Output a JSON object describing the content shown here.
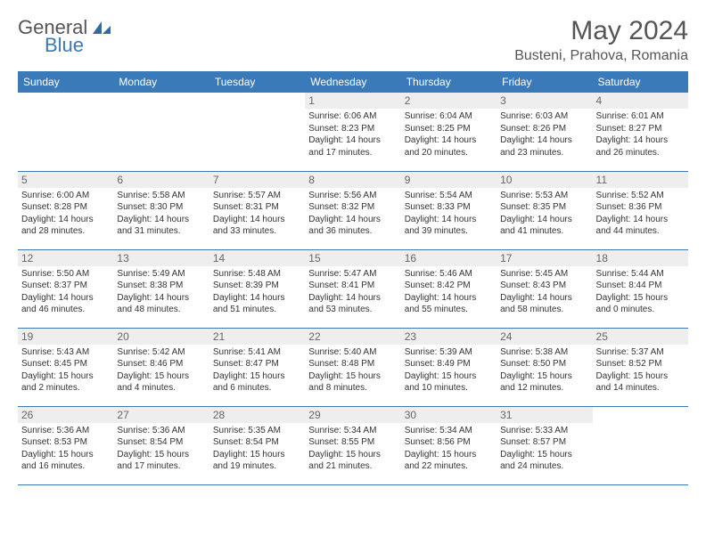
{
  "brand": {
    "general": "General",
    "blue": "Blue"
  },
  "title": "May 2024",
  "location": "Busteni, Prahova, Romania",
  "colors": {
    "accent": "#3a7ab8",
    "dayband": "#eeeeee",
    "text": "#555555"
  },
  "weekdays": [
    "Sunday",
    "Monday",
    "Tuesday",
    "Wednesday",
    "Thursday",
    "Friday",
    "Saturday"
  ],
  "weeks": [
    [
      null,
      null,
      null,
      {
        "n": "1",
        "sr": "6:06 AM",
        "ss": "8:23 PM",
        "dl": "14 hours and 17 minutes."
      },
      {
        "n": "2",
        "sr": "6:04 AM",
        "ss": "8:25 PM",
        "dl": "14 hours and 20 minutes."
      },
      {
        "n": "3",
        "sr": "6:03 AM",
        "ss": "8:26 PM",
        "dl": "14 hours and 23 minutes."
      },
      {
        "n": "4",
        "sr": "6:01 AM",
        "ss": "8:27 PM",
        "dl": "14 hours and 26 minutes."
      }
    ],
    [
      {
        "n": "5",
        "sr": "6:00 AM",
        "ss": "8:28 PM",
        "dl": "14 hours and 28 minutes."
      },
      {
        "n": "6",
        "sr": "5:58 AM",
        "ss": "8:30 PM",
        "dl": "14 hours and 31 minutes."
      },
      {
        "n": "7",
        "sr": "5:57 AM",
        "ss": "8:31 PM",
        "dl": "14 hours and 33 minutes."
      },
      {
        "n": "8",
        "sr": "5:56 AM",
        "ss": "8:32 PM",
        "dl": "14 hours and 36 minutes."
      },
      {
        "n": "9",
        "sr": "5:54 AM",
        "ss": "8:33 PM",
        "dl": "14 hours and 39 minutes."
      },
      {
        "n": "10",
        "sr": "5:53 AM",
        "ss": "8:35 PM",
        "dl": "14 hours and 41 minutes."
      },
      {
        "n": "11",
        "sr": "5:52 AM",
        "ss": "8:36 PM",
        "dl": "14 hours and 44 minutes."
      }
    ],
    [
      {
        "n": "12",
        "sr": "5:50 AM",
        "ss": "8:37 PM",
        "dl": "14 hours and 46 minutes."
      },
      {
        "n": "13",
        "sr": "5:49 AM",
        "ss": "8:38 PM",
        "dl": "14 hours and 48 minutes."
      },
      {
        "n": "14",
        "sr": "5:48 AM",
        "ss": "8:39 PM",
        "dl": "14 hours and 51 minutes."
      },
      {
        "n": "15",
        "sr": "5:47 AM",
        "ss": "8:41 PM",
        "dl": "14 hours and 53 minutes."
      },
      {
        "n": "16",
        "sr": "5:46 AM",
        "ss": "8:42 PM",
        "dl": "14 hours and 55 minutes."
      },
      {
        "n": "17",
        "sr": "5:45 AM",
        "ss": "8:43 PM",
        "dl": "14 hours and 58 minutes."
      },
      {
        "n": "18",
        "sr": "5:44 AM",
        "ss": "8:44 PM",
        "dl": "15 hours and 0 minutes."
      }
    ],
    [
      {
        "n": "19",
        "sr": "5:43 AM",
        "ss": "8:45 PM",
        "dl": "15 hours and 2 minutes."
      },
      {
        "n": "20",
        "sr": "5:42 AM",
        "ss": "8:46 PM",
        "dl": "15 hours and 4 minutes."
      },
      {
        "n": "21",
        "sr": "5:41 AM",
        "ss": "8:47 PM",
        "dl": "15 hours and 6 minutes."
      },
      {
        "n": "22",
        "sr": "5:40 AM",
        "ss": "8:48 PM",
        "dl": "15 hours and 8 minutes."
      },
      {
        "n": "23",
        "sr": "5:39 AM",
        "ss": "8:49 PM",
        "dl": "15 hours and 10 minutes."
      },
      {
        "n": "24",
        "sr": "5:38 AM",
        "ss": "8:50 PM",
        "dl": "15 hours and 12 minutes."
      },
      {
        "n": "25",
        "sr": "5:37 AM",
        "ss": "8:52 PM",
        "dl": "15 hours and 14 minutes."
      }
    ],
    [
      {
        "n": "26",
        "sr": "5:36 AM",
        "ss": "8:53 PM",
        "dl": "15 hours and 16 minutes."
      },
      {
        "n": "27",
        "sr": "5:36 AM",
        "ss": "8:54 PM",
        "dl": "15 hours and 17 minutes."
      },
      {
        "n": "28",
        "sr": "5:35 AM",
        "ss": "8:54 PM",
        "dl": "15 hours and 19 minutes."
      },
      {
        "n": "29",
        "sr": "5:34 AM",
        "ss": "8:55 PM",
        "dl": "15 hours and 21 minutes."
      },
      {
        "n": "30",
        "sr": "5:34 AM",
        "ss": "8:56 PM",
        "dl": "15 hours and 22 minutes."
      },
      {
        "n": "31",
        "sr": "5:33 AM",
        "ss": "8:57 PM",
        "dl": "15 hours and 24 minutes."
      },
      null
    ]
  ],
  "labels": {
    "sunrise": "Sunrise:",
    "sunset": "Sunset:",
    "daylight": "Daylight:"
  }
}
